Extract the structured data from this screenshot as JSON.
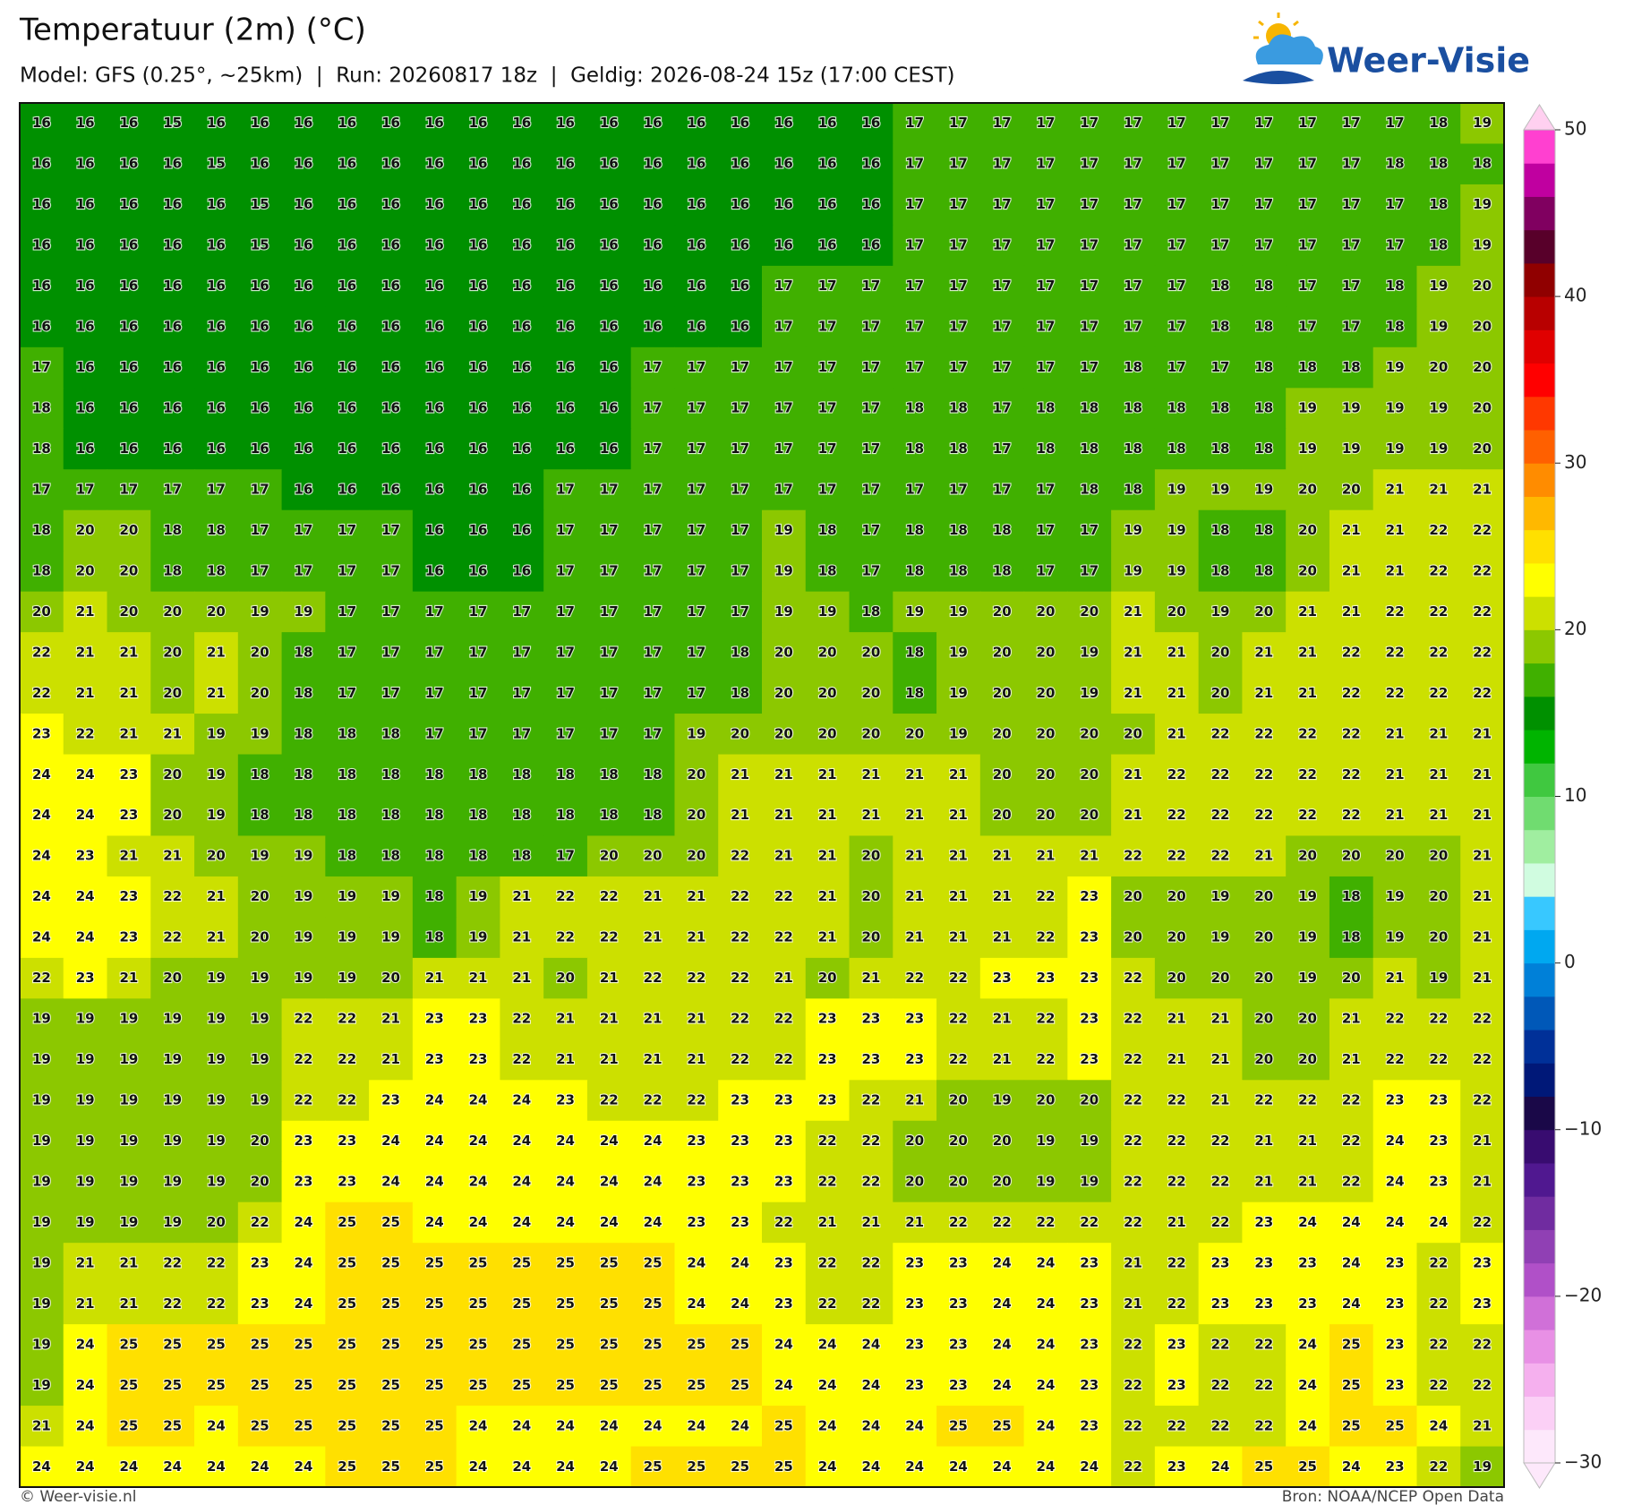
{
  "map": {
    "title": "Temperatuur (2m) (°C)",
    "subtitle": "Model: GFS (0.25°, ~25km)  |  Run: 20260817 18z  |  Geldig: 2026-08-24 15z (17:00 CEST)",
    "logo": "Weer-Visie",
    "footer_left": "© Weer-visie.nl",
    "footer_right": "Bron: NOAA/NCEP Open Data",
    "grid": [
      [
        16,
        16,
        16,
        15,
        16,
        16,
        16,
        16,
        16,
        16,
        16,
        16,
        16,
        16,
        16,
        16,
        16,
        16,
        16,
        16,
        17,
        17,
        17,
        17,
        17,
        17,
        17,
        17,
        17,
        17,
        17,
        17,
        18,
        19
      ],
      [
        16,
        16,
        16,
        16,
        15,
        16,
        16,
        16,
        16,
        16,
        16,
        16,
        16,
        16,
        16,
        16,
        16,
        16,
        16,
        16,
        17,
        17,
        17,
        17,
        17,
        17,
        17,
        17,
        17,
        17,
        17,
        18,
        18,
        18
      ],
      [
        16,
        16,
        16,
        16,
        16,
        15,
        16,
        16,
        16,
        16,
        16,
        16,
        16,
        16,
        16,
        16,
        16,
        16,
        16,
        16,
        17,
        17,
        17,
        17,
        17,
        17,
        17,
        17,
        17,
        17,
        17,
        17,
        18,
        19
      ],
      [
        16,
        16,
        16,
        16,
        16,
        15,
        16,
        16,
        16,
        16,
        16,
        16,
        16,
        16,
        16,
        16,
        16,
        16,
        16,
        16,
        17,
        17,
        17,
        17,
        17,
        17,
        17,
        17,
        17,
        17,
        17,
        17,
        18,
        19
      ],
      [
        16,
        16,
        16,
        16,
        16,
        16,
        16,
        16,
        16,
        16,
        16,
        16,
        16,
        16,
        16,
        16,
        16,
        17,
        17,
        17,
        17,
        17,
        17,
        17,
        17,
        17,
        17,
        18,
        18,
        17,
        17,
        18,
        19,
        20
      ],
      [
        16,
        16,
        16,
        16,
        16,
        16,
        16,
        16,
        16,
        16,
        16,
        16,
        16,
        16,
        16,
        16,
        16,
        17,
        17,
        17,
        17,
        17,
        17,
        17,
        17,
        17,
        17,
        18,
        18,
        17,
        17,
        18,
        19,
        20
      ],
      [
        17,
        16,
        16,
        16,
        16,
        16,
        16,
        16,
        16,
        16,
        16,
        16,
        16,
        16,
        17,
        17,
        17,
        17,
        17,
        17,
        17,
        17,
        17,
        17,
        17,
        18,
        17,
        17,
        18,
        18,
        18,
        19,
        20,
        20
      ],
      [
        18,
        16,
        16,
        16,
        16,
        16,
        16,
        16,
        16,
        16,
        16,
        16,
        16,
        16,
        17,
        17,
        17,
        17,
        17,
        17,
        18,
        18,
        17,
        18,
        18,
        18,
        18,
        18,
        18,
        19,
        19,
        19,
        19,
        20
      ],
      [
        18,
        16,
        16,
        16,
        16,
        16,
        16,
        16,
        16,
        16,
        16,
        16,
        16,
        16,
        17,
        17,
        17,
        17,
        17,
        17,
        18,
        18,
        17,
        18,
        18,
        18,
        18,
        18,
        18,
        19,
        19,
        19,
        19,
        20
      ],
      [
        17,
        17,
        17,
        17,
        17,
        17,
        16,
        16,
        16,
        16,
        16,
        16,
        17,
        17,
        17,
        17,
        17,
        17,
        17,
        17,
        17,
        17,
        17,
        17,
        18,
        18,
        19,
        19,
        19,
        20,
        20,
        21,
        21,
        21
      ],
      [
        18,
        20,
        20,
        18,
        18,
        17,
        17,
        17,
        17,
        16,
        16,
        16,
        17,
        17,
        17,
        17,
        17,
        19,
        18,
        17,
        18,
        18,
        18,
        17,
        17,
        19,
        19,
        18,
        18,
        20,
        21,
        21,
        22,
        22
      ],
      [
        18,
        20,
        20,
        18,
        18,
        17,
        17,
        17,
        17,
        16,
        16,
        16,
        17,
        17,
        17,
        17,
        17,
        19,
        18,
        17,
        18,
        18,
        18,
        17,
        17,
        19,
        19,
        18,
        18,
        20,
        21,
        21,
        22,
        22
      ],
      [
        20,
        21,
        20,
        20,
        20,
        19,
        19,
        17,
        17,
        17,
        17,
        17,
        17,
        17,
        17,
        17,
        17,
        19,
        19,
        18,
        19,
        19,
        20,
        20,
        20,
        21,
        20,
        19,
        20,
        21,
        21,
        22,
        22,
        22
      ],
      [
        22,
        21,
        21,
        20,
        21,
        20,
        18,
        17,
        17,
        17,
        17,
        17,
        17,
        17,
        17,
        17,
        18,
        20,
        20,
        20,
        18,
        19,
        20,
        20,
        19,
        21,
        21,
        20,
        21,
        21,
        22,
        22,
        22,
        22
      ],
      [
        22,
        21,
        21,
        20,
        21,
        20,
        18,
        17,
        17,
        17,
        17,
        17,
        17,
        17,
        17,
        17,
        18,
        20,
        20,
        20,
        18,
        19,
        20,
        20,
        19,
        21,
        21,
        20,
        21,
        21,
        22,
        22,
        22,
        22
      ],
      [
        23,
        22,
        21,
        21,
        19,
        19,
        18,
        18,
        18,
        17,
        17,
        17,
        17,
        17,
        17,
        19,
        20,
        20,
        20,
        20,
        20,
        19,
        20,
        20,
        20,
        20,
        21,
        22,
        22,
        22,
        22,
        21,
        21,
        21
      ],
      [
        24,
        24,
        23,
        20,
        19,
        18,
        18,
        18,
        18,
        18,
        18,
        18,
        18,
        18,
        18,
        20,
        21,
        21,
        21,
        21,
        21,
        21,
        20,
        20,
        20,
        21,
        22,
        22,
        22,
        22,
        22,
        21,
        21,
        21
      ],
      [
        24,
        24,
        23,
        20,
        19,
        18,
        18,
        18,
        18,
        18,
        18,
        18,
        18,
        18,
        18,
        20,
        21,
        21,
        21,
        21,
        21,
        21,
        20,
        20,
        20,
        21,
        22,
        22,
        22,
        22,
        22,
        21,
        21,
        21
      ],
      [
        24,
        23,
        21,
        21,
        20,
        19,
        19,
        18,
        18,
        18,
        18,
        18,
        17,
        20,
        20,
        20,
        22,
        21,
        21,
        20,
        21,
        21,
        21,
        21,
        21,
        22,
        22,
        22,
        21,
        20,
        20,
        20,
        20,
        21
      ],
      [
        24,
        24,
        23,
        22,
        21,
        20,
        19,
        19,
        19,
        18,
        19,
        21,
        22,
        22,
        21,
        21,
        22,
        22,
        21,
        20,
        21,
        21,
        21,
        22,
        23,
        20,
        20,
        19,
        20,
        19,
        18,
        19,
        20,
        21
      ],
      [
        24,
        24,
        23,
        22,
        21,
        20,
        19,
        19,
        19,
        18,
        19,
        21,
        22,
        22,
        21,
        21,
        22,
        22,
        21,
        20,
        21,
        21,
        21,
        22,
        23,
        20,
        20,
        19,
        20,
        19,
        18,
        19,
        20,
        21
      ],
      [
        22,
        23,
        21,
        20,
        19,
        19,
        19,
        19,
        20,
        21,
        21,
        21,
        20,
        21,
        22,
        22,
        22,
        21,
        20,
        21,
        22,
        22,
        23,
        23,
        23,
        22,
        20,
        20,
        20,
        19,
        20,
        21,
        19,
        21
      ],
      [
        19,
        19,
        19,
        19,
        19,
        19,
        22,
        22,
        21,
        23,
        23,
        22,
        21,
        21,
        21,
        21,
        22,
        22,
        23,
        23,
        23,
        22,
        21,
        22,
        23,
        22,
        21,
        21,
        20,
        20,
        21,
        22,
        22,
        22
      ],
      [
        19,
        19,
        19,
        19,
        19,
        19,
        22,
        22,
        21,
        23,
        23,
        22,
        21,
        21,
        21,
        21,
        22,
        22,
        23,
        23,
        23,
        22,
        21,
        22,
        23,
        22,
        21,
        21,
        20,
        20,
        21,
        22,
        22,
        22
      ],
      [
        19,
        19,
        19,
        19,
        19,
        19,
        22,
        22,
        23,
        24,
        24,
        24,
        23,
        22,
        22,
        22,
        23,
        23,
        23,
        22,
        21,
        20,
        19,
        20,
        20,
        22,
        22,
        21,
        22,
        22,
        22,
        23,
        23,
        22
      ],
      [
        19,
        19,
        19,
        19,
        19,
        20,
        23,
        23,
        24,
        24,
        24,
        24,
        24,
        24,
        24,
        23,
        23,
        23,
        22,
        22,
        20,
        20,
        20,
        19,
        19,
        22,
        22,
        22,
        21,
        21,
        22,
        24,
        23,
        21
      ],
      [
        19,
        19,
        19,
        19,
        19,
        20,
        23,
        23,
        24,
        24,
        24,
        24,
        24,
        24,
        24,
        23,
        23,
        23,
        22,
        22,
        20,
        20,
        20,
        19,
        19,
        22,
        22,
        22,
        21,
        21,
        22,
        24,
        23,
        21
      ],
      [
        19,
        19,
        19,
        19,
        20,
        22,
        24,
        25,
        25,
        24,
        24,
        24,
        24,
        24,
        24,
        23,
        23,
        22,
        21,
        21,
        21,
        22,
        22,
        22,
        22,
        22,
        21,
        22,
        23,
        24,
        24,
        24,
        24,
        22
      ],
      [
        19,
        21,
        21,
        22,
        22,
        23,
        24,
        25,
        25,
        25,
        25,
        25,
        25,
        25,
        25,
        24,
        24,
        23,
        22,
        22,
        23,
        23,
        24,
        24,
        23,
        21,
        22,
        23,
        23,
        23,
        24,
        23,
        22,
        23
      ],
      [
        19,
        21,
        21,
        22,
        22,
        23,
        24,
        25,
        25,
        25,
        25,
        25,
        25,
        25,
        25,
        24,
        24,
        23,
        22,
        22,
        23,
        23,
        24,
        24,
        23,
        21,
        22,
        23,
        23,
        23,
        24,
        23,
        22,
        23
      ],
      [
        19,
        24,
        25,
        25,
        25,
        25,
        25,
        25,
        25,
        25,
        25,
        25,
        25,
        25,
        25,
        25,
        25,
        24,
        24,
        24,
        23,
        23,
        24,
        24,
        23,
        22,
        23,
        22,
        22,
        24,
        25,
        23,
        22,
        22
      ],
      [
        19,
        24,
        25,
        25,
        25,
        25,
        25,
        25,
        25,
        25,
        25,
        25,
        25,
        25,
        25,
        25,
        25,
        24,
        24,
        24,
        23,
        23,
        24,
        24,
        23,
        22,
        23,
        22,
        22,
        24,
        25,
        23,
        22,
        22
      ],
      [
        21,
        24,
        25,
        25,
        24,
        25,
        25,
        25,
        25,
        25,
        24,
        24,
        24,
        24,
        24,
        24,
        24,
        25,
        24,
        24,
        24,
        25,
        25,
        24,
        23,
        22,
        22,
        22,
        22,
        24,
        25,
        25,
        24,
        21
      ],
      [
        24,
        24,
        24,
        24,
        24,
        24,
        24,
        25,
        25,
        25,
        24,
        24,
        24,
        24,
        25,
        25,
        25,
        25,
        24,
        24,
        24,
        24,
        24,
        24,
        24,
        22,
        23,
        24,
        25,
        25,
        24,
        23,
        22,
        19
      ]
    ],
    "colorbar": {
      "lim": [
        -30,
        50
      ],
      "colors": [
        "#fde8fb",
        "#fbd0f6",
        "#f5b0ee",
        "#e890e5",
        "#d070d8",
        "#b050c8",
        "#9040b4",
        "#702ca0",
        "#501890",
        "#380c70",
        "#1a0848",
        "#001878",
        "#003098",
        "#0058b8",
        "#0080d8",
        "#00a8f0",
        "#38c8ff",
        "#d0fce0",
        "#a0eea0",
        "#70dc70",
        "#40c840",
        "#00b400",
        "#009000",
        "#40b000",
        "#8cc800",
        "#cce000",
        "#ffff00",
        "#ffe000",
        "#ffb800",
        "#ff8c00",
        "#ff6000",
        "#ff3800",
        "#ff0000",
        "#e00000",
        "#b80000",
        "#900000",
        "#58002a",
        "#800060",
        "#c000a0",
        "#ff40d0"
      ],
      "top_colors": [
        "#ffa0e0",
        "#ffd0f0"
      ],
      "ticks": [
        50,
        40,
        30,
        20,
        10,
        0,
        {
          "value": -10,
          "label": "−10"
        },
        {
          "value": -20,
          "label": "−20"
        },
        {
          "value": -30,
          "label": "−30"
        }
      ]
    }
  }
}
